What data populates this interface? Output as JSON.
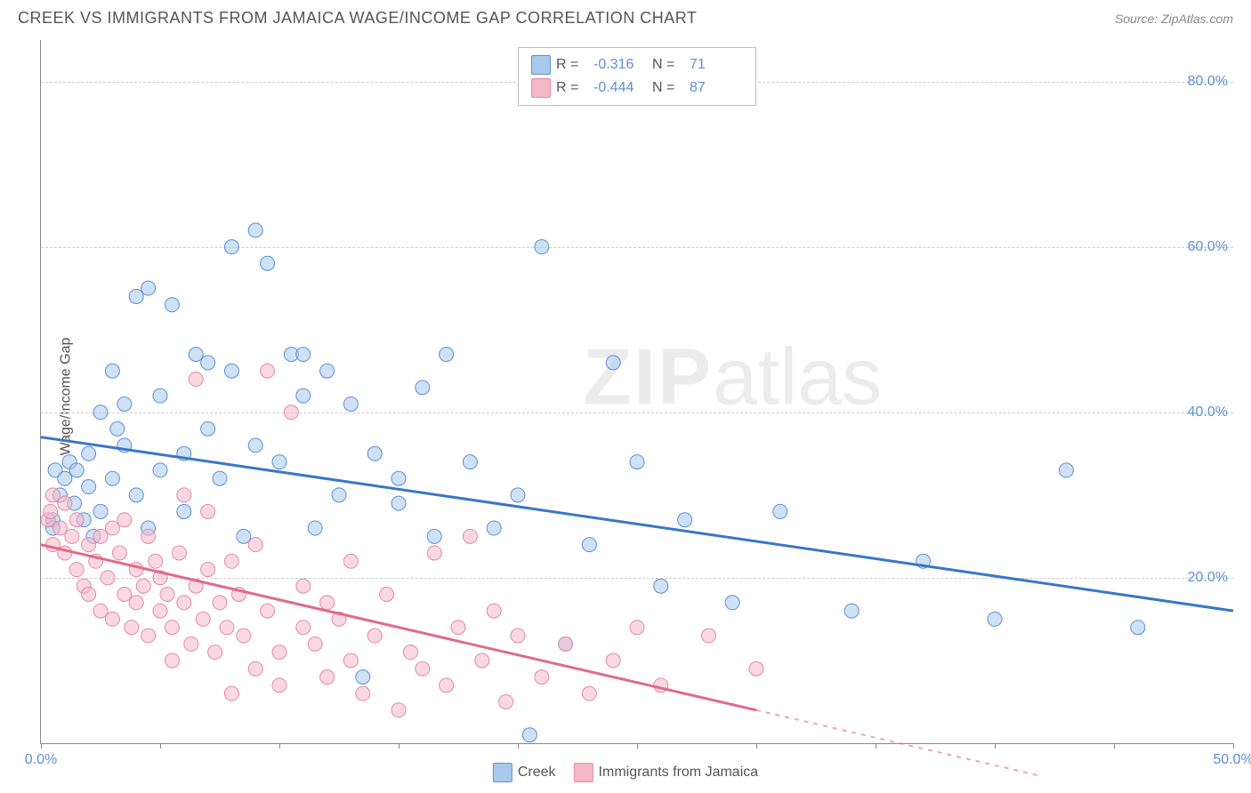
{
  "header": {
    "title": "CREEK VS IMMIGRANTS FROM JAMAICA WAGE/INCOME GAP CORRELATION CHART",
    "source_label": "Source: ",
    "source_name": "ZipAtlas.com"
  },
  "chart": {
    "type": "scatter",
    "ylabel": "Wage/Income Gap",
    "xlim": [
      0,
      50
    ],
    "ylim": [
      0,
      85
    ],
    "xtick_positions": [
      0,
      5,
      10,
      15,
      20,
      25,
      30,
      35,
      40,
      45,
      50
    ],
    "xtick_labels": {
      "0": "0.0%",
      "50": "50.0%"
    },
    "ytick_positions": [
      20,
      40,
      60,
      80
    ],
    "ytick_labels": {
      "20": "20.0%",
      "40": "40.0%",
      "60": "60.0%",
      "80": "80.0%"
    },
    "background_color": "#ffffff",
    "grid_color": "#cccccc",
    "axis_color": "#888888",
    "tick_label_color": "#5b8fd6",
    "marker_radius": 8,
    "marker_opacity": 0.55,
    "watermark": {
      "bold": "ZIP",
      "rest": "atlas"
    },
    "series": [
      {
        "name": "Creek",
        "color_fill": "#a8c8ec",
        "color_stroke": "#5b8fd6",
        "trend_color": "#3a76c8",
        "trend_solid": {
          "x1": 0,
          "y1": 37,
          "x2": 50,
          "y2": 16
        },
        "points": [
          [
            0.5,
            27
          ],
          [
            0.5,
            26
          ],
          [
            0.6,
            33
          ],
          [
            0.8,
            30
          ],
          [
            1.0,
            32
          ],
          [
            1.2,
            34
          ],
          [
            1.4,
            29
          ],
          [
            1.5,
            33
          ],
          [
            1.8,
            27
          ],
          [
            2.0,
            31
          ],
          [
            2.0,
            35
          ],
          [
            2.2,
            25
          ],
          [
            2.5,
            28
          ],
          [
            2.5,
            40
          ],
          [
            3.0,
            45
          ],
          [
            3.0,
            32
          ],
          [
            3.2,
            38
          ],
          [
            3.5,
            41
          ],
          [
            3.5,
            36
          ],
          [
            4.0,
            30
          ],
          [
            4.0,
            54
          ],
          [
            4.5,
            55
          ],
          [
            4.5,
            26
          ],
          [
            5.0,
            42
          ],
          [
            5.0,
            33
          ],
          [
            5.5,
            53
          ],
          [
            6.0,
            35
          ],
          [
            6.0,
            28
          ],
          [
            6.5,
            47
          ],
          [
            7.0,
            46
          ],
          [
            7.0,
            38
          ],
          [
            7.5,
            32
          ],
          [
            8.0,
            60
          ],
          [
            8.0,
            45
          ],
          [
            8.5,
            25
          ],
          [
            9.0,
            62
          ],
          [
            9.0,
            36
          ],
          [
            9.5,
            58
          ],
          [
            10.0,
            34
          ],
          [
            10.5,
            47
          ],
          [
            11.0,
            42
          ],
          [
            11.0,
            47
          ],
          [
            11.5,
            26
          ],
          [
            12.0,
            45
          ],
          [
            12.5,
            30
          ],
          [
            13.0,
            41
          ],
          [
            13.5,
            8
          ],
          [
            14.0,
            35
          ],
          [
            15.0,
            32
          ],
          [
            15.0,
            29
          ],
          [
            16.0,
            43
          ],
          [
            16.5,
            25
          ],
          [
            17.0,
            47
          ],
          [
            18.0,
            34
          ],
          [
            19.0,
            26
          ],
          [
            20.0,
            30
          ],
          [
            20.5,
            1
          ],
          [
            21.0,
            60
          ],
          [
            22.0,
            12
          ],
          [
            23.0,
            24
          ],
          [
            24.0,
            46
          ],
          [
            25.0,
            34
          ],
          [
            26.0,
            19
          ],
          [
            27.0,
            27
          ],
          [
            29.0,
            17
          ],
          [
            31.0,
            28
          ],
          [
            34.0,
            16
          ],
          [
            37.0,
            22
          ],
          [
            40.0,
            15
          ],
          [
            43.0,
            33
          ],
          [
            46.0,
            14
          ]
        ]
      },
      {
        "name": "Immigrants from Jamaica",
        "color_fill": "#f5b8c8",
        "color_stroke": "#e38aa5",
        "trend_color": "#e06a8a",
        "trend_solid": {
          "x1": 0,
          "y1": 24,
          "x2": 30,
          "y2": 4
        },
        "trend_dash": {
          "x1": 30,
          "y1": 4,
          "x2": 42,
          "y2": -4
        },
        "points": [
          [
            0.3,
            27
          ],
          [
            0.4,
            28
          ],
          [
            0.5,
            30
          ],
          [
            0.5,
            24
          ],
          [
            0.8,
            26
          ],
          [
            1.0,
            23
          ],
          [
            1.0,
            29
          ],
          [
            1.3,
            25
          ],
          [
            1.5,
            21
          ],
          [
            1.5,
            27
          ],
          [
            1.8,
            19
          ],
          [
            2.0,
            24
          ],
          [
            2.0,
            18
          ],
          [
            2.3,
            22
          ],
          [
            2.5,
            25
          ],
          [
            2.5,
            16
          ],
          [
            2.8,
            20
          ],
          [
            3.0,
            26
          ],
          [
            3.0,
            15
          ],
          [
            3.3,
            23
          ],
          [
            3.5,
            18
          ],
          [
            3.5,
            27
          ],
          [
            3.8,
            14
          ],
          [
            4.0,
            21
          ],
          [
            4.0,
            17
          ],
          [
            4.3,
            19
          ],
          [
            4.5,
            25
          ],
          [
            4.5,
            13
          ],
          [
            4.8,
            22
          ],
          [
            5.0,
            16
          ],
          [
            5.0,
            20
          ],
          [
            5.3,
            18
          ],
          [
            5.5,
            14
          ],
          [
            5.5,
            10
          ],
          [
            5.8,
            23
          ],
          [
            6.0,
            17
          ],
          [
            6.0,
            30
          ],
          [
            6.3,
            12
          ],
          [
            6.5,
            19
          ],
          [
            6.5,
            44
          ],
          [
            6.8,
            15
          ],
          [
            7.0,
            21
          ],
          [
            7.0,
            28
          ],
          [
            7.3,
            11
          ],
          [
            7.5,
            17
          ],
          [
            7.8,
            14
          ],
          [
            8.0,
            6
          ],
          [
            8.0,
            22
          ],
          [
            8.3,
            18
          ],
          [
            8.5,
            13
          ],
          [
            9.0,
            9
          ],
          [
            9.0,
            24
          ],
          [
            9.5,
            45
          ],
          [
            9.5,
            16
          ],
          [
            10.0,
            11
          ],
          [
            10.0,
            7
          ],
          [
            10.5,
            40
          ],
          [
            11.0,
            14
          ],
          [
            11.0,
            19
          ],
          [
            11.5,
            12
          ],
          [
            12.0,
            8
          ],
          [
            12.0,
            17
          ],
          [
            12.5,
            15
          ],
          [
            13.0,
            10
          ],
          [
            13.0,
            22
          ],
          [
            13.5,
            6
          ],
          [
            14.0,
            13
          ],
          [
            14.5,
            18
          ],
          [
            15.0,
            4
          ],
          [
            15.5,
            11
          ],
          [
            16.0,
            9
          ],
          [
            16.5,
            23
          ],
          [
            17.0,
            7
          ],
          [
            17.5,
            14
          ],
          [
            18.0,
            25
          ],
          [
            18.5,
            10
          ],
          [
            19.0,
            16
          ],
          [
            19.5,
            5
          ],
          [
            20.0,
            13
          ],
          [
            21.0,
            8
          ],
          [
            22.0,
            12
          ],
          [
            23.0,
            6
          ],
          [
            24.0,
            10
          ],
          [
            25.0,
            14
          ],
          [
            26.0,
            7
          ],
          [
            28.0,
            13
          ],
          [
            30.0,
            9
          ]
        ]
      }
    ],
    "legend_top": {
      "rows": [
        {
          "swatch_fill": "#a8c8ec",
          "swatch_stroke": "#5b8fd6",
          "r_label": "R =",
          "r_val": "-0.316",
          "n_label": "N =",
          "n_val": "71"
        },
        {
          "swatch_fill": "#f5b8c8",
          "swatch_stroke": "#e38aa5",
          "r_label": "R =",
          "r_val": "-0.444",
          "n_label": "N =",
          "n_val": "87"
        }
      ]
    },
    "legend_bottom": [
      {
        "swatch_fill": "#a8c8ec",
        "swatch_stroke": "#5b8fd6",
        "label": "Creek"
      },
      {
        "swatch_fill": "#f5b8c8",
        "swatch_stroke": "#e38aa5",
        "label": "Immigrants from Jamaica"
      }
    ]
  }
}
